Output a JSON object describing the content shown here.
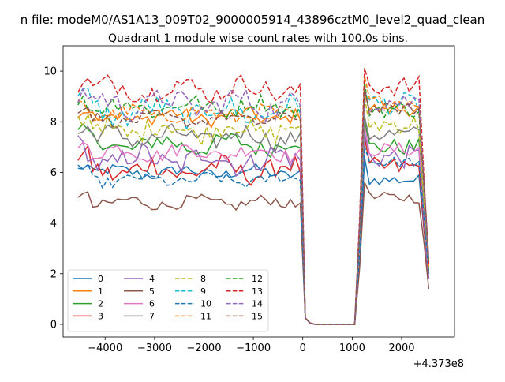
{
  "figure": {
    "suptitle": "n file: modeM0/AS1A13_009T02_9000005914_43896cztM0_level2_quad_clean",
    "title": "Quadrant 1 module wise count rates with 100.0s bins."
  },
  "chart_data": {
    "type": "line",
    "title": "Quadrant 1 module wise count rates with 100.0s bins.",
    "xlabel": "",
    "ylabel": "",
    "x_offset_label": "+4.373e8",
    "xlim": [
      -4850,
      3070
    ],
    "ylim": [
      -0.5,
      11.0
    ],
    "x_ticks": [
      -4000,
      -3000,
      -2000,
      -1000,
      0,
      1000,
      2000
    ],
    "x_tick_labels": [
      "−4000",
      "−3000",
      "−2000",
      "−1000",
      "0",
      "1000",
      "2000"
    ],
    "y_ticks": [
      0,
      2,
      4,
      6,
      8,
      10
    ],
    "y_tick_labels": [
      "0",
      "2",
      "4",
      "6",
      "8",
      "10"
    ],
    "grid": false,
    "legend_placement": "lower-left",
    "x": [
      -4550,
      -4450,
      -4350,
      -4250,
      -4150,
      -4050,
      -3950,
      -3850,
      -3750,
      -3650,
      -3550,
      -3450,
      -3350,
      -3250,
      -3150,
      -3050,
      -2950,
      -2850,
      -2750,
      -2650,
      -2550,
      -2450,
      -2350,
      -2250,
      -2150,
      -2050,
      -1950,
      -1850,
      -1750,
      -1650,
      -1550,
      -1450,
      -1350,
      -1250,
      -1150,
      -1050,
      -950,
      -850,
      -750,
      -650,
      -550,
      -450,
      -350,
      -250,
      -150,
      -50,
      50,
      150,
      250,
      350,
      450,
      550,
      650,
      750,
      850,
      950,
      1050,
      1150,
      1250,
      1350,
      1450,
      1550,
      1650,
      1750,
      1850,
      1950,
      2050,
      2150,
      2250,
      2350,
      2450,
      2550
    ],
    "series": [
      {
        "name": "0",
        "color": "#1f77b4",
        "dash": "solid",
        "pre": 6.0,
        "post": 5.7,
        "end": 1.9
      },
      {
        "name": "1",
        "color": "#ff7f0e",
        "dash": "solid",
        "pre": 8.2,
        "post": 8.5,
        "end": 2.0
      },
      {
        "name": "2",
        "color": "#2ca02c",
        "dash": "solid",
        "pre": 7.1,
        "post": 7.0,
        "end": 2.0
      },
      {
        "name": "3",
        "color": "#d62728",
        "dash": "solid",
        "pre": 6.1,
        "post": 6.2,
        "end": 1.8
      },
      {
        "name": "4",
        "color": "#9467bd",
        "dash": "solid",
        "pre": 6.5,
        "post": 6.6,
        "end": 1.8
      },
      {
        "name": "5",
        "color": "#8c564b",
        "dash": "solid",
        "pre": 4.8,
        "post": 5.0,
        "end": 1.4
      },
      {
        "name": "6",
        "color": "#e377c2",
        "dash": "solid",
        "pre": 6.8,
        "post": 6.9,
        "end": 1.9
      },
      {
        "name": "7",
        "color": "#7f7f7f",
        "dash": "solid",
        "pre": 7.4,
        "post": 7.5,
        "end": 2.1
      },
      {
        "name": "8",
        "color": "#bcbd22",
        "dash": "dashed",
        "pre": 7.7,
        "post": 7.9,
        "end": 2.2
      },
      {
        "name": "9",
        "color": "#17becf",
        "dash": "dashed",
        "pre": 8.4,
        "post": 8.7,
        "end": 2.4
      },
      {
        "name": "10",
        "color": "#1f77b4",
        "dash": "dashed",
        "pre": 5.7,
        "post": 6.4,
        "end": 2.0
      },
      {
        "name": "11",
        "color": "#ff7f0e",
        "dash": "dashed",
        "pre": 8.3,
        "post": 8.8,
        "end": 2.3
      },
      {
        "name": "12",
        "color": "#2ca02c",
        "dash": "dashed",
        "pre": 8.6,
        "post": 8.5,
        "end": 2.5
      },
      {
        "name": "13",
        "color": "#d62728",
        "dash": "dashed",
        "pre": 9.3,
        "post": 9.4,
        "end": 2.4
      },
      {
        "name": "14",
        "color": "#9467bd",
        "dash": "dashed",
        "pre": 8.7,
        "post": 8.8,
        "end": 2.5
      },
      {
        "name": "15",
        "color": "#8c564b",
        "dash": "dashed",
        "pre": 8.1,
        "post": 8.5,
        "end": 2.6
      }
    ]
  }
}
